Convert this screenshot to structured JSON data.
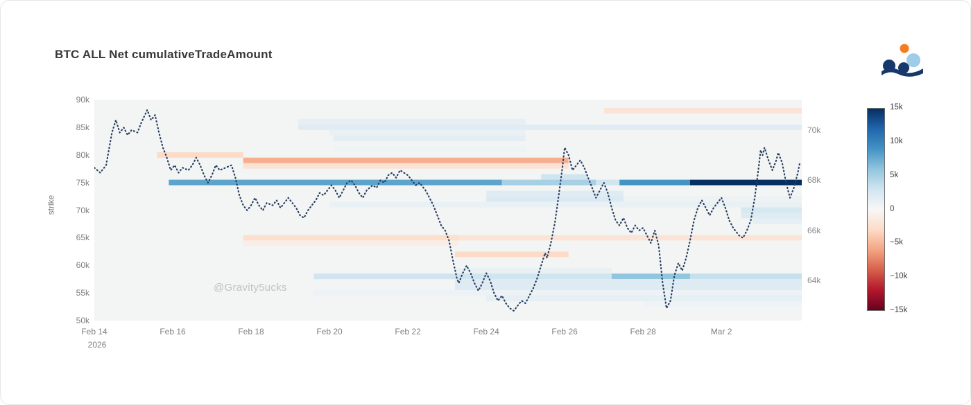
{
  "page": {
    "watermark": "@Gravity5ucks"
  },
  "colors": {
    "plot_bg": "#f2f5f4",
    "line": "#2b3f63",
    "logo_orange": "#f47c20",
    "logo_lightblue": "#9fcce8",
    "logo_navy": "#16386b"
  },
  "chart_data": {
    "type": "heatmap",
    "title": "BTC ALL Net cumulativeTradeAmount",
    "ylabel": "strike",
    "x_range": [
      0,
      18.05
    ],
    "strike_range": [
      50,
      90
    ],
    "price_range": [
      62.41,
      71.21
    ],
    "x_ticks": [
      {
        "d": 0,
        "label": "Feb 14",
        "sub": "2026"
      },
      {
        "d": 2,
        "label": "Feb 16",
        "sub": ""
      },
      {
        "d": 4,
        "label": "Feb 18",
        "sub": ""
      },
      {
        "d": 6,
        "label": "Feb 20",
        "sub": ""
      },
      {
        "d": 8,
        "label": "Feb 22",
        "sub": ""
      },
      {
        "d": 10,
        "label": "Feb 24",
        "sub": ""
      },
      {
        "d": 12,
        "label": "Feb 26",
        "sub": ""
      },
      {
        "d": 14,
        "label": "Feb 28",
        "sub": ""
      },
      {
        "d": 16,
        "label": "Mar 2",
        "sub": ""
      }
    ],
    "strike_ticks": [
      {
        "v": 90,
        "label": "90k"
      },
      {
        "v": 85,
        "label": "85k"
      },
      {
        "v": 80,
        "label": "80k"
      },
      {
        "v": 75,
        "label": "75k"
      },
      {
        "v": 70,
        "label": "70k"
      },
      {
        "v": 65,
        "label": "65k"
      },
      {
        "v": 60,
        "label": "60k"
      },
      {
        "v": 55,
        "label": "55k"
      },
      {
        "v": 50,
        "label": "50k"
      }
    ],
    "price_ticks": [
      {
        "v": 70,
        "label": "70k"
      },
      {
        "v": 68,
        "label": "68k"
      },
      {
        "v": 66,
        "label": "66k"
      },
      {
        "v": 64,
        "label": "64k"
      }
    ],
    "colorbar": {
      "min": -15,
      "max": 15,
      "ticks": [
        {
          "v": 15,
          "label": "15k"
        },
        {
          "v": 10,
          "label": "10k"
        },
        {
          "v": 5,
          "label": "5k"
        },
        {
          "v": 0,
          "label": "0"
        },
        {
          "v": -5,
          "label": "−5k"
        },
        {
          "v": -10,
          "label": "−10k"
        },
        {
          "v": -15,
          "label": "−15k"
        }
      ]
    },
    "colorscale": [
      [
        0.0,
        "#67001f"
      ],
      [
        0.1,
        "#b2182b"
      ],
      [
        0.2,
        "#d6604d"
      ],
      [
        0.3,
        "#f4a582"
      ],
      [
        0.4,
        "#fddbc7"
      ],
      [
        0.5,
        "#f7f7f7"
      ],
      [
        0.6,
        "#d1e5f0"
      ],
      [
        0.7,
        "#92c5de"
      ],
      [
        0.8,
        "#4393c4"
      ],
      [
        0.9,
        "#2166ac"
      ],
      [
        1.0,
        "#053061"
      ]
    ],
    "heat_bands": [
      [
        88,
        13,
        18.05,
        -2
      ],
      [
        86,
        5.2,
        11,
        1.3
      ],
      [
        85,
        5.2,
        18.05,
        1.8
      ],
      [
        84,
        6,
        11,
        1
      ],
      [
        83,
        6.1,
        11,
        1.6
      ],
      [
        81,
        6.1,
        11,
        0.7
      ],
      [
        80,
        1.6,
        3.8,
        -3
      ],
      [
        79,
        3.8,
        12.1,
        -5.5
      ],
      [
        78,
        3.8,
        12.1,
        -2.2
      ],
      [
        76,
        11.4,
        12.6,
        3
      ],
      [
        75,
        1.9,
        10.4,
        8
      ],
      [
        75,
        10.4,
        12.8,
        5
      ],
      [
        75,
        12.8,
        13.4,
        3
      ],
      [
        75,
        13.4,
        15.2,
        9
      ],
      [
        75,
        15.2,
        18.05,
        15
      ],
      [
        73,
        10,
        13.5,
        1.8
      ],
      [
        72,
        10,
        13.5,
        2.2
      ],
      [
        72,
        13.5,
        18.05,
        0.8
      ],
      [
        71,
        6,
        18.05,
        1
      ],
      [
        70,
        16.5,
        18.05,
        2.5
      ],
      [
        69,
        16.5,
        18.05,
        2
      ],
      [
        68,
        16.8,
        18.05,
        1.5
      ],
      [
        65,
        3.8,
        9.3,
        -2.6
      ],
      [
        65,
        9.3,
        18.05,
        -2
      ],
      [
        64,
        3.8,
        9.3,
        -1
      ],
      [
        62,
        9.2,
        12.1,
        -3
      ],
      [
        59,
        9.2,
        13.2,
        1.2
      ],
      [
        58,
        5.6,
        13.2,
        3
      ],
      [
        58,
        13.2,
        15.2,
        6
      ],
      [
        58,
        15.2,
        18.05,
        3.5
      ],
      [
        57,
        9.2,
        18.05,
        2
      ],
      [
        56,
        9.2,
        18.05,
        2
      ],
      [
        55,
        5.6,
        18.05,
        0.9
      ],
      [
        54,
        10,
        18.05,
        1.4
      ],
      [
        53,
        14,
        18.05,
        0.7
      ]
    ],
    "price_line": {
      "name": "BTC price",
      "points": [
        [
          0,
          68.5
        ],
        [
          0.15,
          68.3
        ],
        [
          0.3,
          68.6
        ],
        [
          0.45,
          69.9
        ],
        [
          0.55,
          70.4
        ],
        [
          0.65,
          69.9
        ],
        [
          0.75,
          70.1
        ],
        [
          0.85,
          69.8
        ],
        [
          0.95,
          70.0
        ],
        [
          1.1,
          69.9
        ],
        [
          1.2,
          70.3
        ],
        [
          1.35,
          70.8
        ],
        [
          1.45,
          70.4
        ],
        [
          1.55,
          70.6
        ],
        [
          1.65,
          69.9
        ],
        [
          1.75,
          69.3
        ],
        [
          1.85,
          68.9
        ],
        [
          1.95,
          68.4
        ],
        [
          2.05,
          68.6
        ],
        [
          2.15,
          68.3
        ],
        [
          2.25,
          68.5
        ],
        [
          2.4,
          68.4
        ],
        [
          2.5,
          68.6
        ],
        [
          2.6,
          68.9
        ],
        [
          2.7,
          68.6
        ],
        [
          2.8,
          68.2
        ],
        [
          2.9,
          67.9
        ],
        [
          3.0,
          68.2
        ],
        [
          3.1,
          68.6
        ],
        [
          3.2,
          68.4
        ],
        [
          3.35,
          68.5
        ],
        [
          3.5,
          68.6
        ],
        [
          3.6,
          68.1
        ],
        [
          3.7,
          67.4
        ],
        [
          3.8,
          67.0
        ],
        [
          3.9,
          66.8
        ],
        [
          4.0,
          67.0
        ],
        [
          4.1,
          67.3
        ],
        [
          4.2,
          67.0
        ],
        [
          4.3,
          66.8
        ],
        [
          4.4,
          67.1
        ],
        [
          4.55,
          67.0
        ],
        [
          4.65,
          67.2
        ],
        [
          4.75,
          66.9
        ],
        [
          4.85,
          67.1
        ],
        [
          4.95,
          67.3
        ],
        [
          5.05,
          67.1
        ],
        [
          5.15,
          66.9
        ],
        [
          5.25,
          66.6
        ],
        [
          5.35,
          66.5
        ],
        [
          5.45,
          66.8
        ],
        [
          5.55,
          67.0
        ],
        [
          5.65,
          67.2
        ],
        [
          5.75,
          67.5
        ],
        [
          5.85,
          67.4
        ],
        [
          5.95,
          67.6
        ],
        [
          6.05,
          67.8
        ],
        [
          6.15,
          67.6
        ],
        [
          6.25,
          67.3
        ],
        [
          6.35,
          67.6
        ],
        [
          6.45,
          67.9
        ],
        [
          6.55,
          68.0
        ],
        [
          6.65,
          67.8
        ],
        [
          6.75,
          67.5
        ],
        [
          6.85,
          67.3
        ],
        [
          6.95,
          67.6
        ],
        [
          7.1,
          67.8
        ],
        [
          7.2,
          67.7
        ],
        [
          7.3,
          68.0
        ],
        [
          7.4,
          67.9
        ],
        [
          7.5,
          68.2
        ],
        [
          7.6,
          68.3
        ],
        [
          7.7,
          68.1
        ],
        [
          7.8,
          68.4
        ],
        [
          7.9,
          68.3
        ],
        [
          8.0,
          68.2
        ],
        [
          8.1,
          68.0
        ],
        [
          8.2,
          67.8
        ],
        [
          8.3,
          67.9
        ],
        [
          8.45,
          67.6
        ],
        [
          8.55,
          67.3
        ],
        [
          8.65,
          67.0
        ],
        [
          8.75,
          66.6
        ],
        [
          8.85,
          66.2
        ],
        [
          8.95,
          66.0
        ],
        [
          9.05,
          65.6
        ],
        [
          9.15,
          64.8
        ],
        [
          9.25,
          64.1
        ],
        [
          9.3,
          63.9
        ],
        [
          9.4,
          64.3
        ],
        [
          9.5,
          64.6
        ],
        [
          9.6,
          64.3
        ],
        [
          9.7,
          63.9
        ],
        [
          9.8,
          63.6
        ],
        [
          9.9,
          63.9
        ],
        [
          10.0,
          64.3
        ],
        [
          10.1,
          64.0
        ],
        [
          10.2,
          63.5
        ],
        [
          10.3,
          63.2
        ],
        [
          10.4,
          63.4
        ],
        [
          10.5,
          63.1
        ],
        [
          10.6,
          62.9
        ],
        [
          10.7,
          62.8
        ],
        [
          10.8,
          63.0
        ],
        [
          10.9,
          63.2
        ],
        [
          11.0,
          63.1
        ],
        [
          11.1,
          63.4
        ],
        [
          11.2,
          63.7
        ],
        [
          11.3,
          64.1
        ],
        [
          11.4,
          64.6
        ],
        [
          11.5,
          65.1
        ],
        [
          11.55,
          64.9
        ],
        [
          11.65,
          65.5
        ],
        [
          11.75,
          66.3
        ],
        [
          11.85,
          67.4
        ],
        [
          11.95,
          68.6
        ],
        [
          12.0,
          69.3
        ],
        [
          12.1,
          69.0
        ],
        [
          12.2,
          68.4
        ],
        [
          12.3,
          68.6
        ],
        [
          12.4,
          68.8
        ],
        [
          12.5,
          68.5
        ],
        [
          12.6,
          68.1
        ],
        [
          12.7,
          67.7
        ],
        [
          12.8,
          67.3
        ],
        [
          12.9,
          67.6
        ],
        [
          13.0,
          67.9
        ],
        [
          13.1,
          67.5
        ],
        [
          13.2,
          66.9
        ],
        [
          13.3,
          66.4
        ],
        [
          13.4,
          66.2
        ],
        [
          13.5,
          66.5
        ],
        [
          13.6,
          66.1
        ],
        [
          13.7,
          65.9
        ],
        [
          13.8,
          66.2
        ],
        [
          13.9,
          66.0
        ],
        [
          14.0,
          66.1
        ],
        [
          14.1,
          65.8
        ],
        [
          14.2,
          65.5
        ],
        [
          14.3,
          66.0
        ],
        [
          14.4,
          65.4
        ],
        [
          14.5,
          63.9
        ],
        [
          14.6,
          62.9
        ],
        [
          14.7,
          63.2
        ],
        [
          14.8,
          64.2
        ],
        [
          14.9,
          64.7
        ],
        [
          15.0,
          64.4
        ],
        [
          15.1,
          64.9
        ],
        [
          15.2,
          65.6
        ],
        [
          15.3,
          66.4
        ],
        [
          15.4,
          66.9
        ],
        [
          15.5,
          67.2
        ],
        [
          15.6,
          66.9
        ],
        [
          15.7,
          66.6
        ],
        [
          15.8,
          66.9
        ],
        [
          15.9,
          67.1
        ],
        [
          16.0,
          67.3
        ],
        [
          16.1,
          66.9
        ],
        [
          16.2,
          66.4
        ],
        [
          16.3,
          66.1
        ],
        [
          16.45,
          65.8
        ],
        [
          16.55,
          65.7
        ],
        [
          16.65,
          66.0
        ],
        [
          16.75,
          66.4
        ],
        [
          16.85,
          67.3
        ],
        [
          16.95,
          68.5
        ],
        [
          17.0,
          69.2
        ],
        [
          17.05,
          69.0
        ],
        [
          17.1,
          69.3
        ],
        [
          17.2,
          68.8
        ],
        [
          17.3,
          68.4
        ],
        [
          17.4,
          68.8
        ],
        [
          17.45,
          69.1
        ],
        [
          17.55,
          68.7
        ],
        [
          17.65,
          67.9
        ],
        [
          17.75,
          67.3
        ],
        [
          17.85,
          67.7
        ],
        [
          17.95,
          68.3
        ],
        [
          18.0,
          68.7
        ]
      ]
    }
  }
}
